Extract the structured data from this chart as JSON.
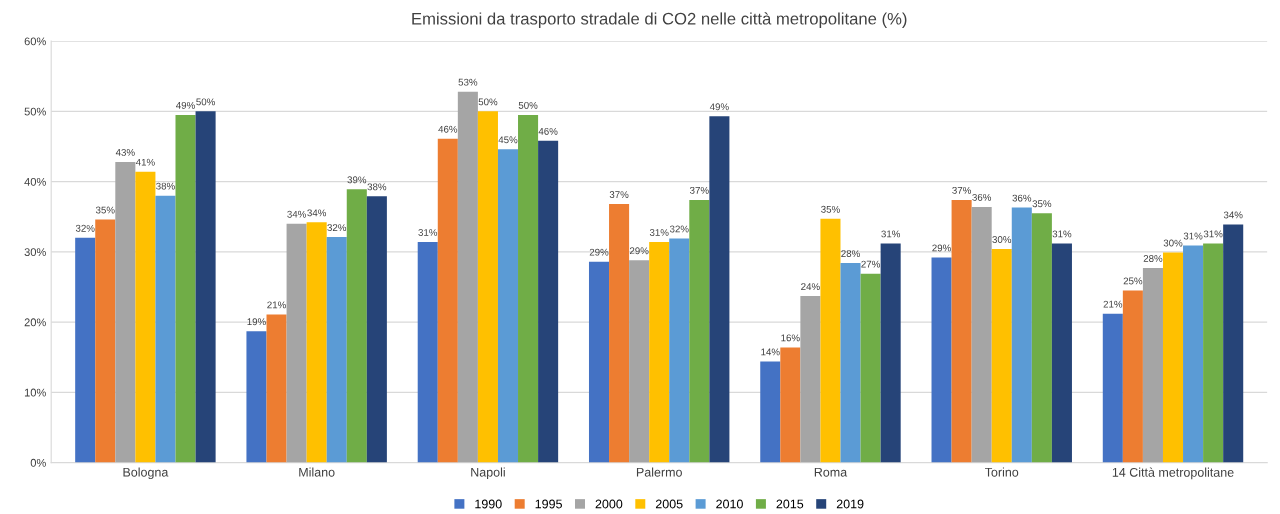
{
  "chart_data": {
    "type": "bar",
    "title": "Emissioni da trasporto stradale di CO2 nelle città metropolitane (%)",
    "categories": [
      "Bologna",
      "Milano",
      "Napoli",
      "Palermo",
      "Roma",
      "Torino",
      "14 Città metropolitane"
    ],
    "series": [
      {
        "name": "1990",
        "color": "#4472c4",
        "values": [
          32,
          18.7,
          31.4,
          28.6,
          14.4,
          29.2,
          21.2
        ],
        "value_labels": [
          "32%",
          "19%",
          "31%",
          "29%",
          "14%",
          "29%",
          "21%"
        ]
      },
      {
        "name": "1995",
        "color": "#ed7d31",
        "values": [
          34.6,
          21.1,
          46.1,
          36.8,
          16.4,
          37.4,
          24.5
        ],
        "value_labels": [
          "35%",
          "21%",
          "46%",
          "37%",
          "16%",
          "37%",
          "25%"
        ]
      },
      {
        "name": "2000",
        "color": "#a5a5a5",
        "values": [
          42.8,
          34,
          52.8,
          28.8,
          23.7,
          36.4,
          27.7
        ],
        "value_labels": [
          "43%",
          "34%",
          "53%",
          "29%",
          "24%",
          "36%",
          "28%"
        ]
      },
      {
        "name": "2005",
        "color": "#ffc000",
        "values": [
          41.4,
          34.2,
          50,
          31.4,
          34.7,
          30.4,
          29.9
        ],
        "value_labels": [
          "41%",
          "34%",
          "50%",
          "31%",
          "35%",
          "30%",
          "30%"
        ]
      },
      {
        "name": "2010",
        "color": "#5b9bd5",
        "values": [
          38,
          32.1,
          44.6,
          31.9,
          28.4,
          36.3,
          30.9
        ],
        "value_labels": [
          "38%",
          "32%",
          "45%",
          "32%",
          "28%",
          "36%",
          "31%"
        ]
      },
      {
        "name": "2015",
        "color": "#70ad47",
        "values": [
          49.5,
          38.9,
          49.5,
          37.4,
          26.9,
          35.5,
          31.2
        ],
        "value_labels": [
          "49%",
          "39%",
          "50%",
          "37%",
          "27%",
          "35%",
          "31%"
        ]
      },
      {
        "name": "2019",
        "color": "#264478",
        "values": [
          50,
          37.9,
          45.8,
          49.3,
          31.2,
          31.2,
          33.9
        ],
        "value_labels": [
          "50%",
          "38%",
          "46%",
          "49%",
          "31%",
          "31%",
          "34%"
        ]
      }
    ],
    "ylim": [
      0,
      60
    ],
    "yticks": [
      {
        "value": 0,
        "label": "0%"
      },
      {
        "value": 10,
        "label": "10%"
      },
      {
        "value": 20,
        "label": "20%"
      },
      {
        "value": 30,
        "label": "30%"
      },
      {
        "value": 40,
        "label": "40%"
      },
      {
        "value": 50,
        "label": "50%"
      },
      {
        "value": 60,
        "label": "60%"
      }
    ],
    "grid": "y",
    "legend": "bottom"
  }
}
